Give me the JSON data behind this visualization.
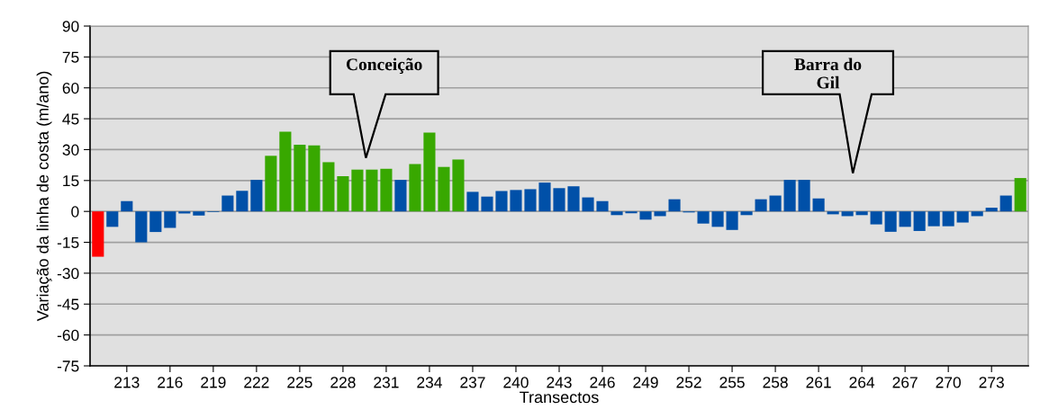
{
  "chart_data": {
    "type": "bar",
    "xlabel": "Transectos",
    "ylabel": "Variação da linha de costa (m/ano)",
    "categories": [
      null,
      null,
      "213",
      null,
      null,
      "216",
      null,
      null,
      "219",
      null,
      null,
      "222",
      null,
      null,
      "225",
      null,
      null,
      "228",
      null,
      null,
      "231",
      null,
      null,
      "234",
      null,
      null,
      "237",
      null,
      null,
      "240",
      null,
      null,
      "243",
      null,
      null,
      "246",
      null,
      null,
      "249",
      null,
      null,
      "252",
      null,
      null,
      "255",
      null,
      null,
      "258",
      null,
      null,
      "261",
      null,
      null,
      "264",
      null,
      null,
      "267",
      null,
      null,
      "270",
      null,
      null,
      "273",
      null,
      null
    ],
    "values": [
      -22,
      -7.5,
      5,
      -15,
      -10,
      -8,
      -1,
      -2,
      -0.3,
      7.7,
      10,
      15.3,
      27,
      38.7,
      32.4,
      32,
      23.9,
      17.1,
      20.3,
      20.3,
      20.7,
      15.3,
      23,
      38.3,
      21.6,
      25.2,
      9.5,
      7.2,
      9.9,
      10.4,
      10.8,
      14,
      11.3,
      12.2,
      6.8,
      5,
      -1.8,
      -0.9,
      -4,
      -2.3,
      5.9,
      -0.5,
      -5.9,
      -7.5,
      -9,
      -1.8,
      5.9,
      7.7,
      15.3,
      15.3,
      6.3,
      -1.4,
      -2.3,
      -1.8,
      -6.3,
      -9.9,
      -7.5,
      -9.5,
      -7.2,
      -7.2,
      -5.4,
      -2.3,
      1.8,
      7.7,
      16.2
    ],
    "colors": [
      "#ff0000",
      "#0050a8",
      "#0050a8",
      "#0050a8",
      "#0050a8",
      "#0050a8",
      "#0050a8",
      "#0050a8",
      "#0050a8",
      "#0050a8",
      "#0050a8",
      "#0050a8",
      "#38a800",
      "#38a800",
      "#38a800",
      "#38a800",
      "#38a800",
      "#38a800",
      "#38a800",
      "#38a800",
      "#38a800",
      "#0050a8",
      "#38a800",
      "#38a800",
      "#38a800",
      "#38a800",
      "#0050a8",
      "#0050a8",
      "#0050a8",
      "#0050a8",
      "#0050a8",
      "#0050a8",
      "#0050a8",
      "#0050a8",
      "#0050a8",
      "#0050a8",
      "#0050a8",
      "#0050a8",
      "#0050a8",
      "#0050a8",
      "#0050a8",
      "#0050a8",
      "#0050a8",
      "#0050a8",
      "#0050a8",
      "#0050a8",
      "#0050a8",
      "#0050a8",
      "#0050a8",
      "#0050a8",
      "#0050a8",
      "#0050a8",
      "#0050a8",
      "#0050a8",
      "#0050a8",
      "#0050a8",
      "#0050a8",
      "#0050a8",
      "#0050a8",
      "#0050a8",
      "#0050a8",
      "#0050a8",
      "#0050a8",
      "#0050a8",
      "#38a800"
    ],
    "ylim": [
      -75,
      90
    ],
    "yticks": [
      -75,
      -60,
      -45,
      -30,
      -15,
      0,
      15,
      30,
      45,
      60,
      75,
      90
    ],
    "grid": "y",
    "annotations": [
      "Conceição",
      "Barra do\nGil"
    ]
  }
}
